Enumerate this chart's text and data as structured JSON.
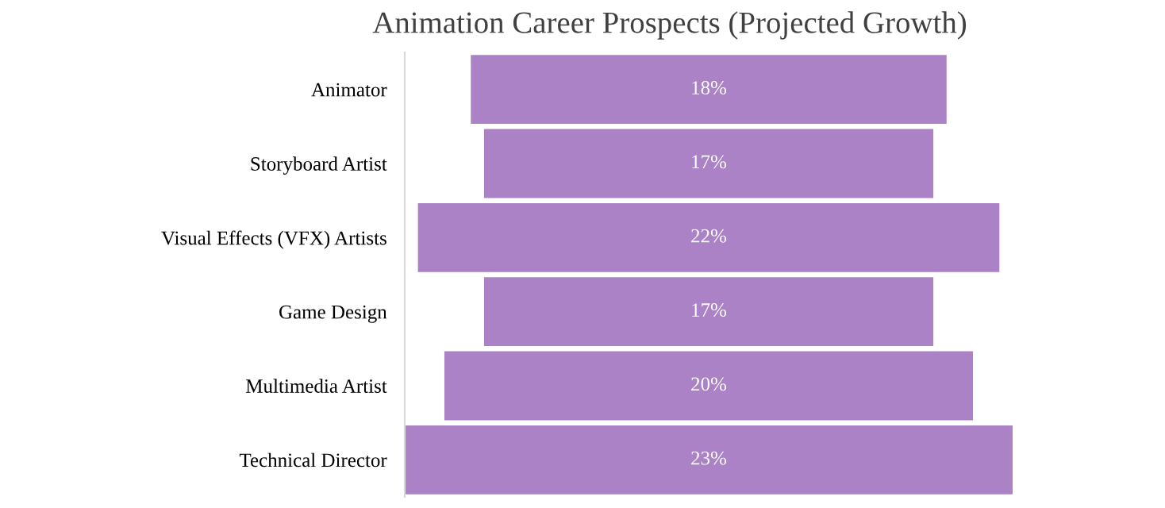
{
  "chart_data": {
    "type": "other",
    "title": "Animation Career Prospects (Projected Growth)",
    "categories": [
      "Animator",
      "Storyboard Artist",
      "Visual Effects (VFX) Artists",
      "Game Design",
      "Multimedia Artist",
      "Technical Director"
    ],
    "values": [
      18,
      17,
      22,
      17,
      20,
      23
    ],
    "value_labels": [
      "18%",
      "17%",
      "22%",
      "17%",
      "20%",
      "23%"
    ],
    "color": "#ab82c5"
  }
}
